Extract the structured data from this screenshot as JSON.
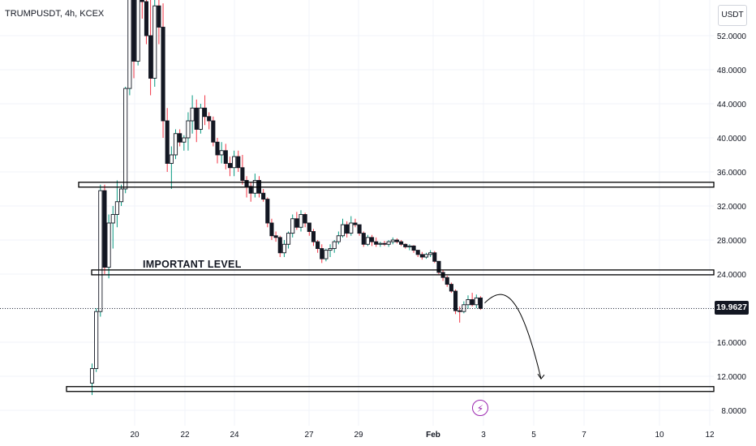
{
  "header": {
    "symbol": "TRUMPUSDT, 4h, KCEX"
  },
  "price_axis": {
    "unit": "USDT",
    "last_price": "19.9627"
  },
  "colors": {
    "up": "#089981",
    "down": "#f23645",
    "candle_body": "#131722",
    "annotation": "#000000",
    "flash": "#9c27b0"
  },
  "icons": {
    "flash": "lightning-icon"
  },
  "chart_data": {
    "type": "candlestick",
    "title": "",
    "y_axis": {
      "ticks": [
        "52.0000",
        "48.0000",
        "44.0000",
        "40.0000",
        "36.0000",
        "32.0000",
        "28.0000",
        "24.0000",
        "20.0000",
        "16.0000",
        "12.0000",
        "8.0000"
      ],
      "ylim": [
        6.3,
        56.4
      ]
    },
    "x_axis": {
      "ticks": [
        "20",
        "22",
        "24",
        "27",
        "29",
        "Feb",
        "3",
        "5",
        "7",
        "10",
        "12"
      ]
    },
    "ohlc_y_values": [
      [
        11.2,
        13.5,
        9.8,
        12.9
      ],
      [
        12.9,
        20,
        12.5,
        19.6
      ],
      [
        19.6,
        34.5,
        19,
        33.8
      ],
      [
        33.8,
        34.5,
        24,
        24.8
      ],
      [
        24.8,
        31,
        23.5,
        30
      ],
      [
        30,
        32,
        27,
        31
      ],
      [
        31,
        35,
        29.5,
        32.5
      ],
      [
        32.5,
        34.5,
        32,
        34
      ],
      [
        34,
        46,
        33.5,
        45.8
      ],
      [
        45.8,
        60,
        45,
        58
      ],
      [
        58,
        60,
        47,
        49
      ],
      [
        49,
        58,
        48.5,
        57
      ],
      [
        57,
        60,
        54,
        56
      ],
      [
        56,
        62,
        51,
        52
      ],
      [
        52,
        58,
        45,
        47
      ],
      [
        47,
        57,
        46,
        55.5
      ],
      [
        55.5,
        60,
        51,
        53
      ],
      [
        53,
        55.8,
        40,
        42
      ],
      [
        42,
        43.5,
        36,
        37
      ],
      [
        37,
        39,
        34,
        38
      ],
      [
        38,
        41,
        37.5,
        40.5
      ],
      [
        40.5,
        41,
        39,
        39.5
      ],
      [
        39.5,
        40.3,
        38.5,
        40
      ],
      [
        40,
        43,
        38.5,
        42
      ],
      [
        42,
        45,
        40.5,
        43.5
      ],
      [
        43.5,
        44.5,
        39.5,
        41
      ],
      [
        41,
        44,
        40.5,
        43.5
      ],
      [
        43.5,
        45,
        41.5,
        42.5
      ],
      [
        42.5,
        43,
        41,
        42
      ],
      [
        42,
        42.5,
        39,
        39.5
      ],
      [
        39.5,
        40,
        37,
        38
      ],
      [
        38,
        39.5,
        37,
        38.5
      ],
      [
        38.5,
        39.3,
        36.3,
        37
      ],
      [
        37,
        37.8,
        35.5,
        36.5
      ],
      [
        36.5,
        38.5,
        35.5,
        37.8
      ],
      [
        37.8,
        38.5,
        36,
        36.5
      ],
      [
        36.5,
        38,
        34.5,
        35
      ],
      [
        35,
        35.5,
        33,
        34.3
      ],
      [
        34.3,
        34.8,
        32.5,
        33.5
      ],
      [
        33.5,
        35.8,
        33,
        35
      ],
      [
        35,
        35.5,
        33,
        33.5
      ],
      [
        33.5,
        34,
        32.5,
        32.8
      ],
      [
        32.8,
        33,
        29.5,
        30
      ],
      [
        30,
        30.5,
        28,
        28.5
      ],
      [
        28.5,
        29,
        27.8,
        28.3
      ],
      [
        28.3,
        28.5,
        26,
        26.5
      ],
      [
        26.5,
        28,
        26,
        27.5
      ],
      [
        27.5,
        29,
        27,
        28.8
      ],
      [
        28.8,
        31,
        28.3,
        30.5
      ],
      [
        30.5,
        31.3,
        29.2,
        29.5
      ],
      [
        29.5,
        31.5,
        29,
        31
      ],
      [
        31,
        31.2,
        29.5,
        30
      ],
      [
        30,
        30,
        28.5,
        29
      ],
      [
        29,
        29.3,
        27.3,
        27.8
      ],
      [
        27.8,
        28,
        26.5,
        27
      ],
      [
        27,
        27.5,
        25.3,
        25.8
      ],
      [
        25.8,
        27,
        25.5,
        26.8
      ],
      [
        26.8,
        27.5,
        26,
        27
      ],
      [
        27,
        28,
        26.5,
        27.8
      ],
      [
        27.8,
        29,
        27.5,
        28.5
      ],
      [
        28.5,
        30.5,
        28.3,
        29.8
      ],
      [
        29.8,
        30.2,
        28.3,
        28.8
      ],
      [
        28.8,
        30.8,
        28.5,
        30
      ],
      [
        30,
        30.5,
        29.5,
        29.8
      ],
      [
        29.8,
        29.8,
        28.5,
        28.8
      ],
      [
        28.8,
        29,
        27.2,
        27.5
      ],
      [
        27.5,
        28.6,
        27.3,
        28.3
      ],
      [
        28.3,
        28.6,
        27.3,
        27.8
      ],
      [
        27.8,
        28.3,
        27.2,
        27.5
      ],
      [
        27.5,
        27.8,
        27.2,
        27.6
      ],
      [
        27.6,
        27.9,
        27.3,
        27.5
      ],
      [
        27.5,
        28,
        27.2,
        27.8
      ],
      [
        27.8,
        28.3,
        27.5,
        28
      ],
      [
        28,
        28.2,
        27.6,
        27.8
      ],
      [
        27.8,
        28,
        27.3,
        27.5
      ],
      [
        27.5,
        27.6,
        27,
        27.2
      ],
      [
        27.2,
        27.5,
        26.8,
        27.3
      ],
      [
        27.3,
        27.4,
        26.5,
        26.8
      ],
      [
        26.8,
        26.8,
        26,
        26.3
      ],
      [
        26.3,
        26.6,
        25.7,
        26
      ],
      [
        26,
        26.5,
        25.8,
        26.3
      ],
      [
        26.3,
        26.8,
        26,
        26.5
      ],
      [
        26.5,
        26.7,
        25.3,
        25.5
      ],
      [
        25.5,
        25.5,
        24,
        24.2
      ],
      [
        24.2,
        24.5,
        23.2,
        23.6
      ],
      [
        23.6,
        23.8,
        22.5,
        22.8
      ],
      [
        22.8,
        23,
        21.8,
        22
      ],
      [
        22,
        22.2,
        19.3,
        19.7
      ],
      [
        19.7,
        20.2,
        18.3,
        19.6
      ],
      [
        19.6,
        20.8,
        19.4,
        20.4
      ],
      [
        20.4,
        21.5,
        19.9,
        21
      ],
      [
        21,
        21.8,
        20.2,
        20.4
      ],
      [
        20.4,
        21.6,
        20,
        21.2
      ],
      [
        21.2,
        21.4,
        19.8,
        19.96
      ]
    ],
    "annotations": {
      "horizontal_levels": [
        34.5,
        24.2,
        10.5
      ],
      "level_label": "IMPORTANT LEVEL",
      "projection_target": 11.7
    }
  }
}
